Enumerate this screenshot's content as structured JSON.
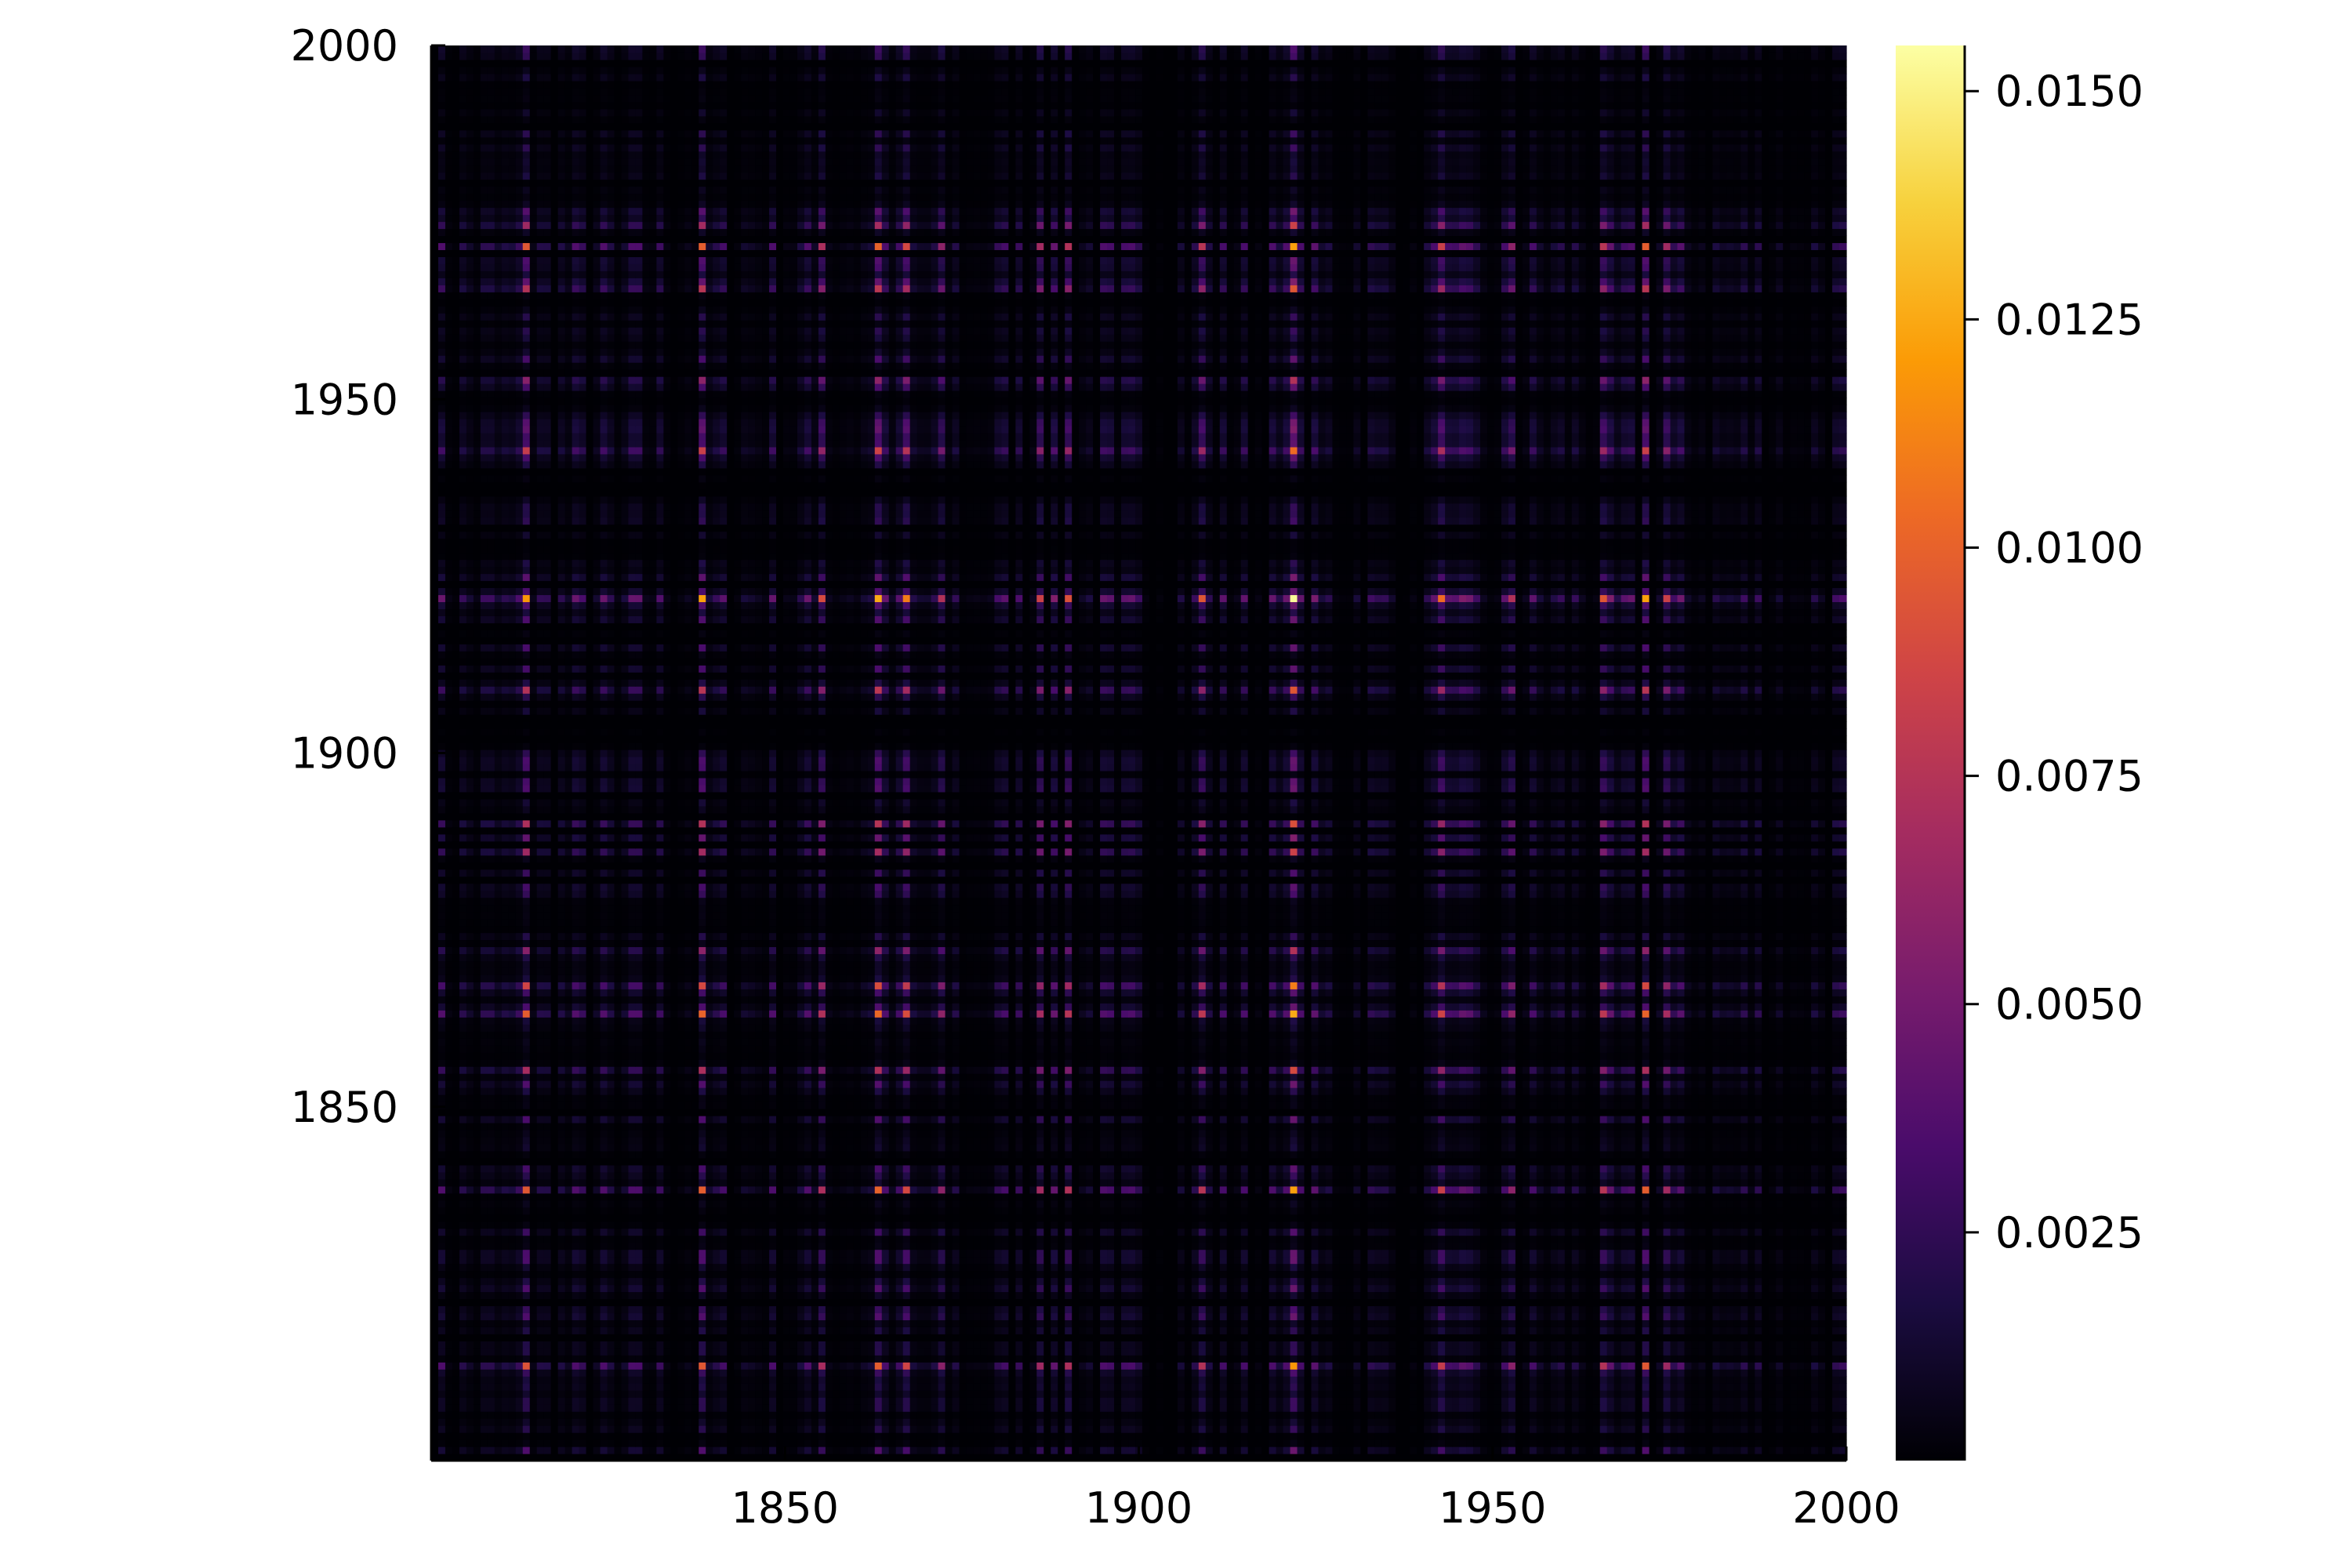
{
  "chart_data": {
    "type": "heatmap",
    "title": "",
    "xlabel": "",
    "ylabel": "",
    "xlim": [
      1800,
      2000
    ],
    "ylim": [
      1800,
      2000
    ],
    "x_tick_labels": [
      "1850",
      "1900",
      "1950",
      "2000"
    ],
    "y_tick_labels": [
      "1850",
      "1900",
      "1950",
      "2000"
    ],
    "x_ticks": [
      1850,
      1900,
      1950,
      2000
    ],
    "y_ticks": [
      1850,
      1900,
      1950,
      2000
    ],
    "grid": false,
    "colormap": "inferno",
    "colormap_stops": [
      "#000004",
      "#1b0c41",
      "#4a0c6b",
      "#781c6d",
      "#a52c60",
      "#cf4446",
      "#ed6925",
      "#fb9b06",
      "#f7d13d",
      "#fcffa4"
    ],
    "color_range": [
      0,
      0.0155
    ],
    "colorbar_tick_labels": [
      "0.0025",
      "0.0050",
      "0.0075",
      "0.0100",
      "0.0125",
      "0.0150"
    ],
    "colorbar_ticks": [
      0.0025,
      0.005,
      0.0075,
      0.01,
      0.0125,
      0.015
    ],
    "structure": "approximate outer product: cell(x,y) ≈ u(x)·u(y), banded rows/columns",
    "grid_years": [
      1800,
      2000
    ],
    "peak_years": [
      1813,
      1838,
      1855,
      1863,
      1867,
      1872,
      1886,
      1890,
      1909,
      1922,
      1943,
      1953,
      1966,
      1972,
      1975
    ],
    "peak_year_weights": [
      0.78,
      0.8,
      0.58,
      0.82,
      0.72,
      0.48,
      0.55,
      0.6,
      0.62,
      1.0,
      0.68,
      0.48,
      0.62,
      0.8,
      0.55
    ],
    "max_value": 0.0153,
    "max_at": [
      1922,
      1922
    ]
  }
}
